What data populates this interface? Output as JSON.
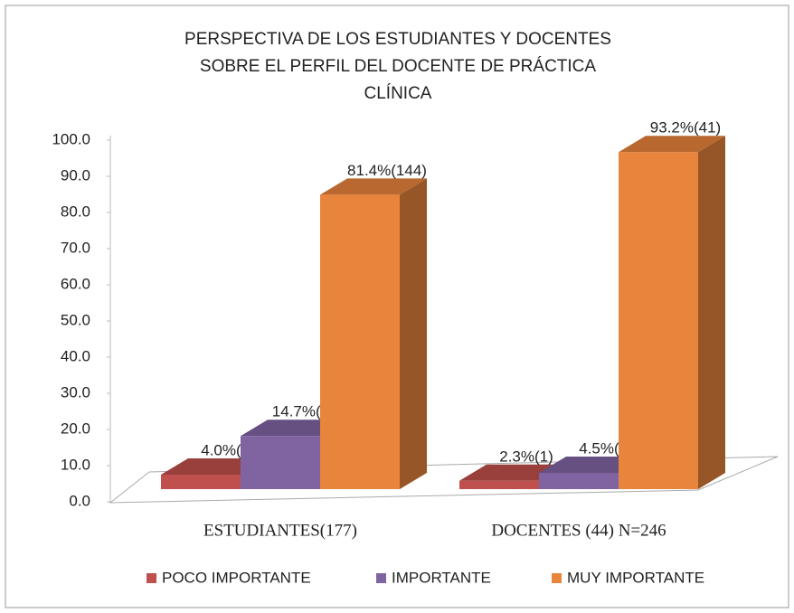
{
  "chart_data": {
    "type": "bar3d",
    "title": [
      "PERSPECTIVA DE LOS  ESTUDIANTES Y DOCENTES",
      "SOBRE EL PERFIL DEL DOCENTE DE PRÁCTICA",
      "CLÍNICA"
    ],
    "categories": [
      "ESTUDIANTES(177)",
      "DOCENTES (44)  N=246"
    ],
    "series": [
      {
        "name": "POCO IMPORTANTE",
        "color": "#c0504d",
        "values": [
          4.0,
          2.3
        ],
        "value_labels": [
          "4.0%(7)",
          "2.3%(1)"
        ]
      },
      {
        "name": "IMPORTANTE",
        "color": "#8064a2",
        "values": [
          14.7,
          4.5
        ],
        "value_labels": [
          "14.7%(26)",
          "4.5%(2)"
        ]
      },
      {
        "name": "MUY IMPORTANTE",
        "color": "#e8843c",
        "values": [
          81.4,
          93.2
        ],
        "value_labels": [
          "81.4%(144)",
          "93.2%(41)"
        ]
      }
    ],
    "ylim": [
      0,
      100
    ],
    "yticks": [
      {
        "value": 0,
        "label": "0.0"
      },
      {
        "value": 10,
        "label": "10.0"
      },
      {
        "value": 20,
        "label": "20.0"
      },
      {
        "value": 30,
        "label": "30.0"
      },
      {
        "value": 40,
        "label": "40.0"
      },
      {
        "value": 50,
        "label": "50.0"
      },
      {
        "value": 60,
        "label": "60.0"
      },
      {
        "value": 70,
        "label": "70.0"
      },
      {
        "value": 80,
        "label": "80.0"
      },
      {
        "value": 90,
        "label": "90.0"
      },
      {
        "value": 100,
        "label": "100.0"
      }
    ],
    "legend": "bottom"
  }
}
